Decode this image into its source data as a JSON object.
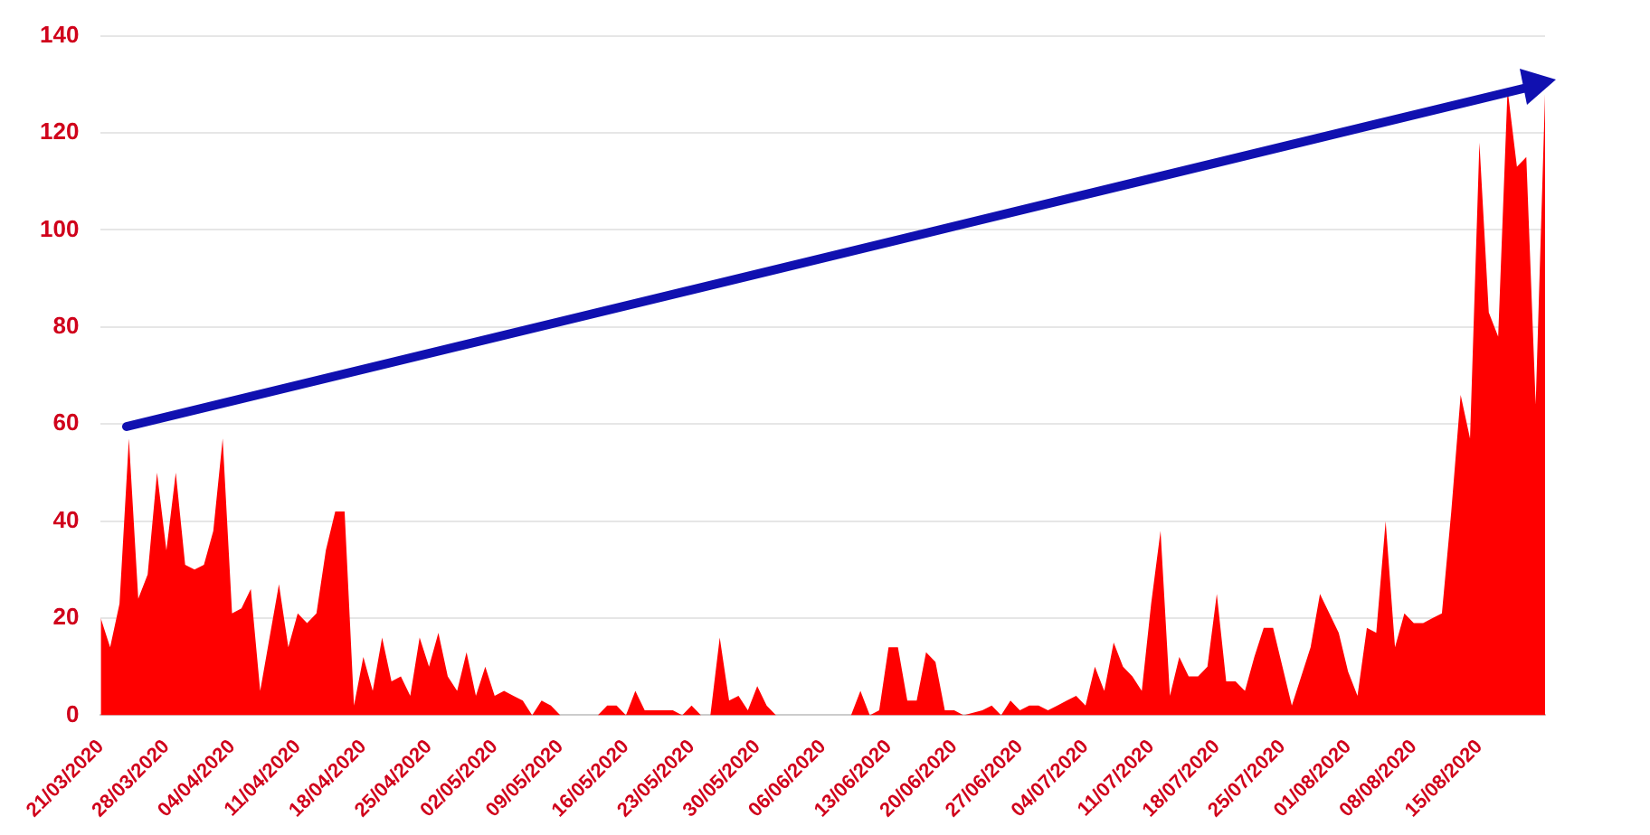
{
  "chart_data": {
    "type": "area",
    "x": [
      "2020-03-21",
      "2020-03-22",
      "2020-03-23",
      "2020-03-24",
      "2020-03-25",
      "2020-03-26",
      "2020-03-27",
      "2020-03-28",
      "2020-03-29",
      "2020-03-30",
      "2020-03-31",
      "2020-04-01",
      "2020-04-02",
      "2020-04-03",
      "2020-04-04",
      "2020-04-05",
      "2020-04-06",
      "2020-04-07",
      "2020-04-08",
      "2020-04-09",
      "2020-04-10",
      "2020-04-11",
      "2020-04-12",
      "2020-04-13",
      "2020-04-14",
      "2020-04-15",
      "2020-04-16",
      "2020-04-17",
      "2020-04-18",
      "2020-04-19",
      "2020-04-20",
      "2020-04-21",
      "2020-04-22",
      "2020-04-23",
      "2020-04-24",
      "2020-04-25",
      "2020-04-26",
      "2020-04-27",
      "2020-04-28",
      "2020-04-29",
      "2020-04-30",
      "2020-05-01",
      "2020-05-02",
      "2020-05-03",
      "2020-05-04",
      "2020-05-05",
      "2020-05-06",
      "2020-05-07",
      "2020-05-08",
      "2020-05-09",
      "2020-05-13",
      "2020-05-14",
      "2020-05-15",
      "2020-05-16",
      "2020-05-17",
      "2020-05-18",
      "2020-05-19",
      "2020-05-20",
      "2020-05-21",
      "2020-05-22",
      "2020-05-23",
      "2020-05-24",
      "2020-05-25",
      "2020-05-26",
      "2020-05-27",
      "2020-05-28",
      "2020-05-29",
      "2020-05-30",
      "2020-05-31",
      "2020-06-01",
      "2020-06-09",
      "2020-06-10",
      "2020-06-11",
      "2020-06-12",
      "2020-06-13",
      "2020-06-14",
      "2020-06-15",
      "2020-06-16",
      "2020-06-17",
      "2020-06-18",
      "2020-06-19",
      "2020-06-20",
      "2020-06-21",
      "2020-06-23",
      "2020-06-24",
      "2020-06-25",
      "2020-06-26",
      "2020-06-27",
      "2020-06-28",
      "2020-06-29",
      "2020-06-30",
      "2020-07-01",
      "2020-07-02",
      "2020-07-03",
      "2020-07-04",
      "2020-07-05",
      "2020-07-06",
      "2020-07-07",
      "2020-07-08",
      "2020-07-09",
      "2020-07-10",
      "2020-07-11",
      "2020-07-12",
      "2020-07-13",
      "2020-07-14",
      "2020-07-15",
      "2020-07-16",
      "2020-07-17",
      "2020-07-18",
      "2020-07-19",
      "2020-07-20",
      "2020-07-21",
      "2020-07-22",
      "2020-07-23",
      "2020-07-24",
      "2020-07-25",
      "2020-07-26",
      "2020-07-27",
      "2020-07-28",
      "2020-07-29",
      "2020-07-30",
      "2020-07-31",
      "2020-08-01",
      "2020-08-02",
      "2020-08-03",
      "2020-08-04",
      "2020-08-05",
      "2020-08-06",
      "2020-08-07",
      "2020-08-08",
      "2020-08-09",
      "2020-08-10",
      "2020-08-11",
      "2020-08-12",
      "2020-08-13",
      "2020-08-14",
      "2020-08-15",
      "2020-08-16",
      "2020-08-17",
      "2020-08-18",
      "2020-08-19",
      "2020-08-20",
      "2020-08-21",
      "2020-08-22"
    ],
    "series": [
      {
        "color": "#ff0000",
        "values": [
          20,
          14,
          23,
          57,
          24,
          29,
          50,
          34,
          50,
          31,
          30,
          31,
          38,
          57,
          21,
          22,
          26,
          5,
          16,
          27,
          14,
          21,
          19,
          21,
          34,
          42,
          42,
          2,
          12,
          5,
          16,
          7,
          8,
          4,
          16,
          10,
          17,
          8,
          5,
          13,
          4,
          10,
          4,
          5,
          4,
          3,
          0,
          3,
          2,
          0,
          0,
          2,
          2,
          0,
          5,
          1,
          1,
          1,
          1,
          0,
          2,
          0,
          0,
          16,
          3,
          4,
          1,
          6,
          2,
          0,
          0,
          5,
          0,
          1,
          14,
          14,
          3,
          3,
          13,
          11,
          1,
          1,
          0,
          1,
          2,
          0,
          3,
          1,
          2,
          2,
          1,
          2,
          3,
          4,
          2,
          10,
          5,
          15,
          10,
          8,
          5,
          23,
          38,
          4,
          12,
          8,
          8,
          10,
          25,
          7,
          7,
          5,
          12,
          18,
          18,
          10,
          2,
          8,
          14,
          25,
          21,
          17,
          9,
          4,
          18,
          17,
          40,
          14,
          21,
          19,
          19,
          20,
          21,
          42,
          66,
          57,
          118,
          83,
          78,
          129,
          113,
          115,
          64,
          128
        ]
      }
    ],
    "xlim": [
      "2020-03-21",
      "2020-08-22"
    ],
    "xticks": [
      {
        "value": "2020-03-21",
        "label": "21/03/2020"
      },
      {
        "value": "2020-03-28",
        "label": "28/03/2020"
      },
      {
        "value": "2020-04-04",
        "label": "04/04/2020"
      },
      {
        "value": "2020-04-11",
        "label": "11/04/2020"
      },
      {
        "value": "2020-04-18",
        "label": "18/04/2020"
      },
      {
        "value": "2020-04-25",
        "label": "25/04/2020"
      },
      {
        "value": "2020-05-02",
        "label": "02/05/2020"
      },
      {
        "value": "2020-05-09",
        "label": "09/05/2020"
      },
      {
        "value": "2020-05-16",
        "label": "16/05/2020"
      },
      {
        "value": "2020-05-23",
        "label": "23/05/2020"
      },
      {
        "value": "2020-05-30",
        "label": "30/05/2020"
      },
      {
        "value": "2020-06-06",
        "label": "06/06/2020"
      },
      {
        "value": "2020-06-13",
        "label": "13/06/2020"
      },
      {
        "value": "2020-06-20",
        "label": "20/06/2020"
      },
      {
        "value": "2020-06-27",
        "label": "27/06/2020"
      },
      {
        "value": "2020-07-04",
        "label": "04/07/2020"
      },
      {
        "value": "2020-07-11",
        "label": "11/07/2020"
      },
      {
        "value": "2020-07-18",
        "label": "18/07/2020"
      },
      {
        "value": "2020-07-25",
        "label": "25/07/2020"
      },
      {
        "value": "2020-08-01",
        "label": "01/08/2020"
      },
      {
        "value": "2020-08-08",
        "label": "08/08/2020"
      },
      {
        "value": "2020-08-15",
        "label": "15/08/2020"
      }
    ],
    "ylim": [
      0,
      140
    ],
    "yticks": [
      0,
      20,
      40,
      60,
      80,
      100,
      120,
      140
    ],
    "grid": "y",
    "legend": false
  }
}
